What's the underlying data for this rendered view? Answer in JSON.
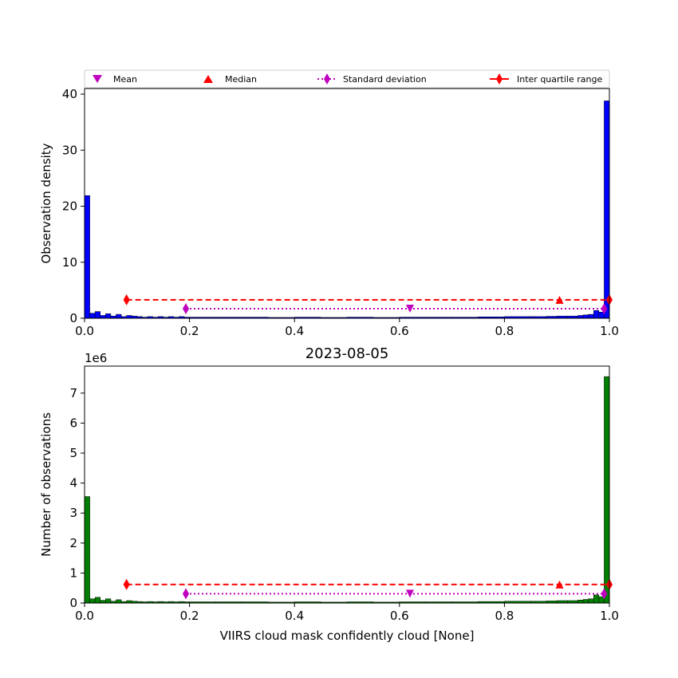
{
  "chart_data": [
    {
      "type": "bar",
      "panel": "top",
      "title": "",
      "xlabel": "",
      "ylabel": "Observation density",
      "xlim": [
        0,
        1
      ],
      "ylim": [
        0,
        41
      ],
      "xticks": [
        0,
        0.2,
        0.4,
        0.6,
        0.8,
        1.0
      ],
      "xtick_labels": [
        "0.0",
        "0.2",
        "0.4",
        "0.6",
        "0.8",
        "1.0"
      ],
      "yticks": [
        0,
        10,
        20,
        30,
        40
      ],
      "ytick_labels": [
        "0",
        "10",
        "20",
        "30",
        "40"
      ],
      "bar_color": "#0000ff",
      "bin_width": 0.01,
      "bins_start": [
        0.0,
        0.01,
        0.02,
        0.03,
        0.04,
        0.05,
        0.06,
        0.07,
        0.08,
        0.09,
        0.1,
        0.11,
        0.12,
        0.13,
        0.14,
        0.15,
        0.16,
        0.17,
        0.18,
        0.19,
        0.2,
        0.25,
        0.3,
        0.35,
        0.4,
        0.45,
        0.5,
        0.55,
        0.6,
        0.65,
        0.7,
        0.75,
        0.8,
        0.85,
        0.88,
        0.9,
        0.92,
        0.94,
        0.95,
        0.96,
        0.97,
        0.98,
        0.99
      ],
      "values": [
        21.9,
        0.9,
        1.2,
        0.5,
        0.8,
        0.4,
        0.7,
        0.3,
        0.5,
        0.4,
        0.3,
        0.2,
        0.3,
        0.2,
        0.3,
        0.2,
        0.3,
        0.2,
        0.3,
        0.2,
        0.2,
        0.2,
        0.2,
        0.15,
        0.2,
        0.15,
        0.2,
        0.15,
        0.2,
        0.2,
        0.2,
        0.25,
        0.3,
        0.3,
        0.35,
        0.4,
        0.4,
        0.5,
        0.6,
        0.7,
        1.4,
        1.1,
        38.8
      ],
      "legend": {
        "placement": "top",
        "entries": [
          {
            "label": "Mean",
            "marker": "triangle-down",
            "color": "#bf00bf"
          },
          {
            "label": "Median",
            "marker": "triangle-up",
            "color": "#ff0000"
          },
          {
            "label": "Standard deviation",
            "marker": "diamond",
            "color": "#bf00bf",
            "line": "dotted"
          },
          {
            "label": "Inter quartile range",
            "marker": "diamond",
            "color": "#ff0000",
            "line": "solid"
          }
        ]
      },
      "annotations": {
        "mean": {
          "x": 0.62,
          "y": 1.7
        },
        "median": {
          "x": 0.905,
          "y": 3.3
        },
        "std_range": {
          "x0": 0.193,
          "x1": 0.99,
          "y": 1.7
        },
        "iqr_range": {
          "x0": 0.08,
          "x1": 1.0,
          "y": 3.3
        }
      }
    },
    {
      "type": "bar",
      "panel": "bottom",
      "title": "2023-08-05",
      "xlabel": "VIIRS cloud mask confidently cloud [None]",
      "ylabel": "Number of observations",
      "y_offset_label": "1e6",
      "xlim": [
        0,
        1
      ],
      "ylim": [
        0,
        7.9
      ],
      "xticks": [
        0,
        0.2,
        0.4,
        0.6,
        0.8,
        1.0
      ],
      "xtick_labels": [
        "0.0",
        "0.2",
        "0.4",
        "0.6",
        "0.8",
        "1.0"
      ],
      "yticks": [
        0,
        1,
        2,
        3,
        4,
        5,
        6,
        7
      ],
      "ytick_labels": [
        "0",
        "1",
        "2",
        "3",
        "4",
        "5",
        "6",
        "7"
      ],
      "bar_color": "#008000",
      "bin_width": 0.01,
      "bins_start": [
        0.0,
        0.01,
        0.02,
        0.03,
        0.04,
        0.05,
        0.06,
        0.07,
        0.08,
        0.09,
        0.1,
        0.11,
        0.12,
        0.13,
        0.14,
        0.15,
        0.16,
        0.17,
        0.18,
        0.19,
        0.2,
        0.25,
        0.3,
        0.35,
        0.4,
        0.45,
        0.5,
        0.55,
        0.6,
        0.65,
        0.7,
        0.75,
        0.8,
        0.85,
        0.88,
        0.9,
        0.92,
        0.94,
        0.95,
        0.96,
        0.97,
        0.98,
        0.99
      ],
      "values": [
        3.55,
        0.14,
        0.19,
        0.09,
        0.14,
        0.06,
        0.11,
        0.05,
        0.08,
        0.06,
        0.05,
        0.04,
        0.05,
        0.04,
        0.05,
        0.04,
        0.05,
        0.04,
        0.05,
        0.04,
        0.04,
        0.04,
        0.04,
        0.03,
        0.04,
        0.03,
        0.04,
        0.03,
        0.04,
        0.04,
        0.04,
        0.05,
        0.06,
        0.06,
        0.07,
        0.08,
        0.08,
        0.1,
        0.12,
        0.14,
        0.27,
        0.21,
        7.55
      ],
      "annotations": {
        "mean": {
          "x": 0.62,
          "y": 0.31
        },
        "median": {
          "x": 0.905,
          "y": 0.62
        },
        "std_range": {
          "x0": 0.193,
          "x1": 0.99,
          "y": 0.31
        },
        "iqr_range": {
          "x0": 0.08,
          "x1": 1.0,
          "y": 0.62
        }
      }
    }
  ]
}
